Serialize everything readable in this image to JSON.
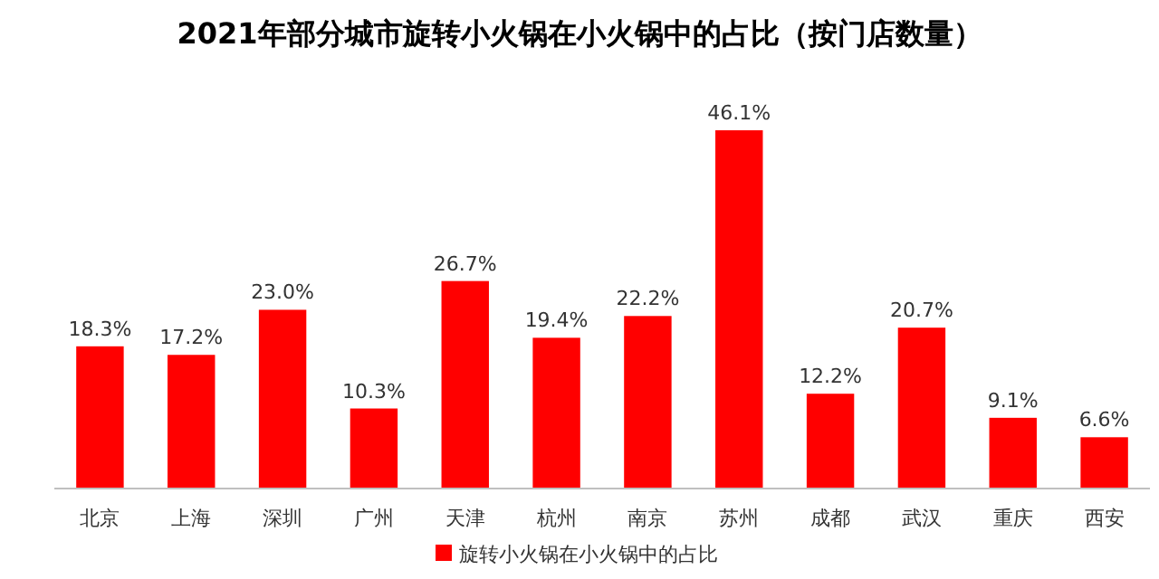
{
  "chart_data": {
    "type": "bar",
    "title": "2021年部分城市旋转小火锅在小火锅中的占比（按门店数量）",
    "categories": [
      "北京",
      "上海",
      "深圳",
      "广州",
      "天津",
      "杭州",
      "南京",
      "苏州",
      "成都",
      "武汉",
      "重庆",
      "西安"
    ],
    "series": [
      {
        "name": "旋转小火锅在小火锅中的占比",
        "color": "#ff0000",
        "values": [
          18.3,
          17.2,
          23.0,
          10.3,
          26.7,
          19.4,
          22.2,
          46.1,
          12.2,
          20.7,
          9.1,
          6.6
        ],
        "value_labels": [
          "18.3%",
          "17.2%",
          "23.0%",
          "10.3%",
          "26.7%",
          "19.4%",
          "22.2%",
          "46.1%",
          "12.2%",
          "20.7%",
          "9.1%",
          "6.6%"
        ]
      }
    ],
    "legend": "bottom"
  }
}
